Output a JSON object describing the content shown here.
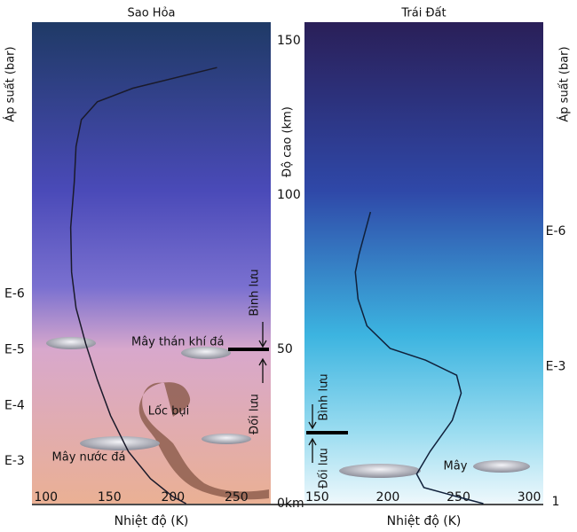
{
  "chart_data": [
    {
      "type": "line",
      "title": "Sao Hỏa",
      "x_label": "Nhiệt độ (K)",
      "y_label": "Độ cao (km)",
      "y2_label": "Áp suất (bar)",
      "xlim": [
        89,
        277
      ],
      "xticks": [
        100,
        150,
        200,
        250
      ],
      "ylim": [
        0,
        156
      ],
      "yticks": [
        {
          "value": 0,
          "label": "0km"
        },
        50,
        100,
        150
      ],
      "y2lim": [
        0.0058,
        1.3e-11
      ],
      "y2log": true,
      "y2ticks": [
        {
          "value": 1e-06,
          "label": "E-6"
        },
        {
          "value": 1e-05,
          "label": "E-5"
        },
        {
          "value": 0.0001,
          "label": "E-4"
        },
        {
          "value": 0.001,
          "label": "E-3"
        }
      ],
      "series": [
        {
          "color": "#1a1a2a",
          "x": [
            234.7,
            168.4,
            140.5,
            127.9,
            123.7,
            122.3,
            119.5,
            120.2,
            123.7,
            131.4,
            140.5,
            150.9,
            164.9,
            182.3,
            199.8,
            210.3
          ],
          "values": [
            141.3,
            134.6,
            130.2,
            124.4,
            115.7,
            104.1,
            89.5,
            75.0,
            63.4,
            51.7,
            40.1,
            28.5,
            16.9,
            8.1,
            2.3,
            0
          ]
        }
      ],
      "boundary": 50,
      "layers": [
        "Bình lưu",
        "Đối lưu"
      ],
      "annotations": [
        "Mây thán khí đá",
        "Lốc bụi",
        "Mây nước đá"
      ]
    },
    {
      "type": "line",
      "title": "Trái Đất",
      "x_label": "Nhiệt độ (K)",
      "y2_label": "Áp suất (bar)",
      "xlim": [
        141,
        310
      ],
      "xticks": [
        150,
        200,
        250,
        300
      ],
      "ylim": [
        0,
        156
      ],
      "y2lim": [
        1.1,
        2.3e-11
      ],
      "y2log": true,
      "y2ticks": [
        {
          "value": 1e-06,
          "label": "E-6"
        },
        {
          "value": 0.001,
          "label": "E-3"
        },
        1
      ],
      "series": [
        {
          "color": "#10203a",
          "x": [
            187.7,
            179.6,
            177.0,
            178.9,
            185.2,
            201.6,
            226.7,
            248.7,
            251.9,
            245.6,
            229.9,
            220.4,
            225.5,
            248.7,
            267.6
          ],
          "values": [
            94.5,
            80.8,
            75.0,
            66.3,
            57.6,
            50.3,
            46.5,
            41.6,
            35.8,
            27.0,
            16.9,
            9.6,
            5.2,
            2.3,
            0
          ]
        }
      ],
      "boundary": 23,
      "layers": [
        "Bình lưu",
        "Đối lưu"
      ],
      "annotations": [
        "Mây"
      ]
    }
  ]
}
